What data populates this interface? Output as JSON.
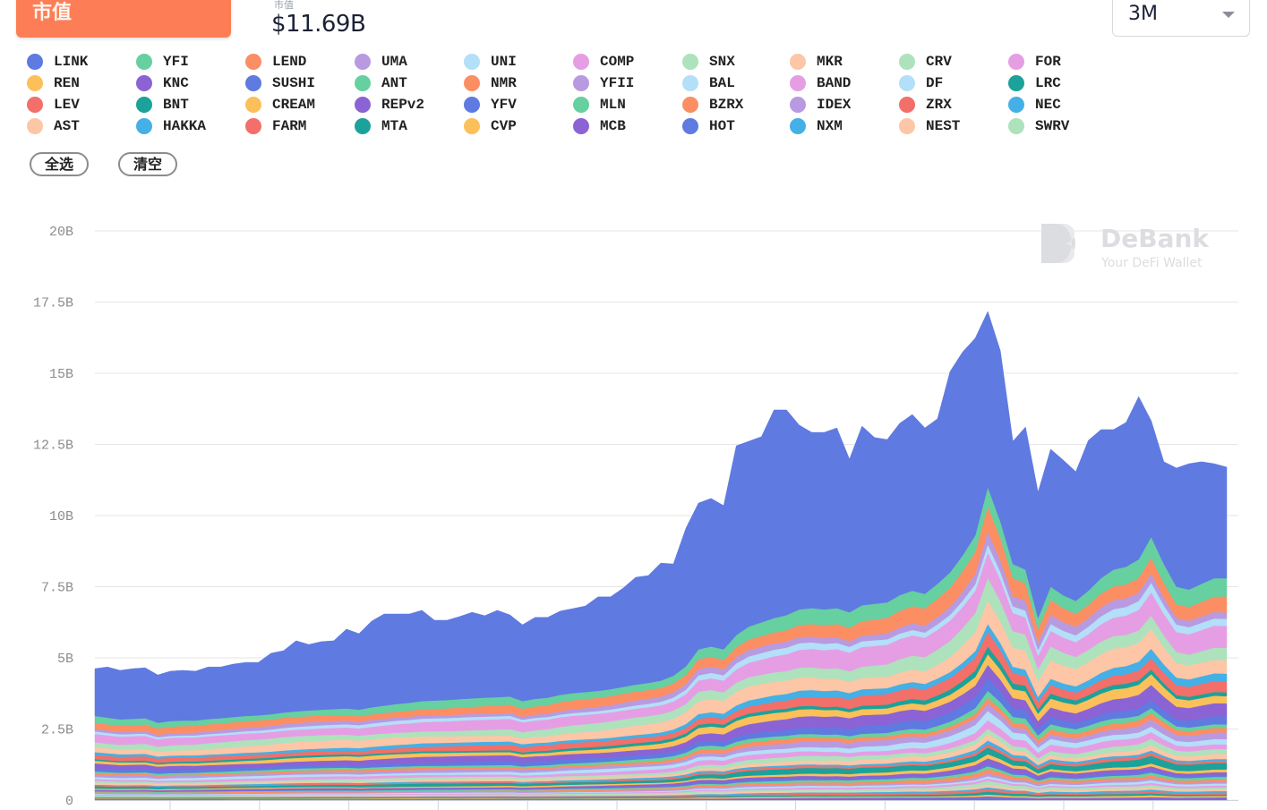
{
  "header": {
    "tab_active_label": "市值",
    "market_value_caption": "市值",
    "market_value": "$11.69B",
    "range_select": {
      "value": "3M"
    }
  },
  "legend": {
    "items": [
      {
        "label": "LINK",
        "color": "#5f7ae0"
      },
      {
        "label": "REN",
        "color": "#fbc05a"
      },
      {
        "label": "LEV",
        "color": "#f26f6a"
      },
      {
        "label": "AST",
        "color": "#fdc6a6"
      },
      {
        "label": "YFI",
        "color": "#66d0a0"
      },
      {
        "label": "KNC",
        "color": "#8b63d4"
      },
      {
        "label": "BNT",
        "color": "#1ba29a"
      },
      {
        "label": "HAKKA",
        "color": "#44b0e6"
      },
      {
        "label": "LEND",
        "color": "#fc8e64"
      },
      {
        "label": "SUSHI",
        "color": "#5f7ae0"
      },
      {
        "label": "CREAM",
        "color": "#fbc05a"
      },
      {
        "label": "FARM",
        "color": "#f26f6a"
      },
      {
        "label": "UMA",
        "color": "#b89ae0"
      },
      {
        "label": "ANT",
        "color": "#66d0a0"
      },
      {
        "label": "REPv2",
        "color": "#8b63d4"
      },
      {
        "label": "MTA",
        "color": "#1ba29a"
      },
      {
        "label": "UNI",
        "color": "#b3dff8"
      },
      {
        "label": "NMR",
        "color": "#fc8e64"
      },
      {
        "label": "YFV",
        "color": "#5f7ae0"
      },
      {
        "label": "CVP",
        "color": "#fbc05a"
      },
      {
        "label": "COMP",
        "color": "#e59ee4"
      },
      {
        "label": "YFII",
        "color": "#b89ae0"
      },
      {
        "label": "MLN",
        "color": "#66d0a0"
      },
      {
        "label": "MCB",
        "color": "#8b63d4"
      },
      {
        "label": "SNX",
        "color": "#ade2bc"
      },
      {
        "label": "BAL",
        "color": "#b3dff8"
      },
      {
        "label": "BZRX",
        "color": "#fc8e64"
      },
      {
        "label": "HOT",
        "color": "#5f7ae0"
      },
      {
        "label": "MKR",
        "color": "#fdc6a6"
      },
      {
        "label": "BAND",
        "color": "#e59ee4"
      },
      {
        "label": "IDEX",
        "color": "#b89ae0"
      },
      {
        "label": "NXM",
        "color": "#44b0e6"
      },
      {
        "label": "CRV",
        "color": "#ade2bc"
      },
      {
        "label": "DF",
        "color": "#b3dff8"
      },
      {
        "label": "ZRX",
        "color": "#f26f6a"
      },
      {
        "label": "NEST",
        "color": "#fdc6a6"
      },
      {
        "label": "FOR",
        "color": "#e59ee4"
      },
      {
        "label": "LRC",
        "color": "#1ba29a"
      },
      {
        "label": "NEC",
        "color": "#44b0e6"
      },
      {
        "label": "SWRV",
        "color": "#ade2bc"
      }
    ],
    "select_all_label": "全选",
    "clear_label": "清空"
  },
  "watermark": {
    "title": "DeBank",
    "subtitle": "Your DeFi Wallet"
  },
  "chart_data": {
    "type": "area",
    "stacked": true,
    "title": "",
    "xlabel": "",
    "ylabel": "",
    "ylim": [
      0,
      20
    ],
    "y_unit": "B",
    "y_ticks": [
      "0",
      "2.5B",
      "5B",
      "7.5B",
      "10B",
      "12.5B",
      "15B",
      "17.5B",
      "20B"
    ],
    "y_tick_values": [
      0,
      2.5,
      5,
      7.5,
      10,
      12.5,
      15,
      17.5,
      20
    ],
    "x_tick_count": 12,
    "x_tick_labels": [],
    "grid": true,
    "legend_position": "top",
    "total": [
      4.62,
      4.68,
      4.56,
      4.62,
      4.65,
      4.4,
      4.53,
      4.56,
      4.53,
      4.68,
      4.68,
      4.78,
      4.84,
      4.84,
      5.16,
      5.25,
      5.6,
      5.47,
      5.57,
      5.6,
      6.01,
      5.85,
      6.29,
      6.54,
      6.54,
      6.54,
      6.67,
      6.32,
      6.32,
      6.45,
      6.6,
      6.48,
      6.67,
      6.51,
      6.16,
      6.42,
      6.42,
      6.64,
      6.73,
      6.82,
      7.14,
      7.14,
      7.45,
      7.83,
      7.89,
      8.33,
      8.3,
      9.56,
      10.44,
      10.6,
      10.35,
      12.45,
      12.61,
      12.77,
      13.71,
      13.71,
      13.18,
      12.92,
      12.92,
      13.08,
      11.98,
      13.14,
      12.74,
      12.67,
      13.24,
      13.55,
      13.08,
      13.4,
      15.06,
      15.75,
      16.23,
      17.17,
      15.79,
      12.61,
      13.11,
      10.82,
      12.33,
      11.95,
      11.54,
      12.64,
      13.02,
      13.02,
      13.27,
      14.18,
      13.33,
      11.89,
      11.67,
      11.82,
      11.89,
      11.82,
      11.7
    ],
    "others_total": [
      2.96,
      2.9,
      2.84,
      2.86,
      2.88,
      2.72,
      2.78,
      2.8,
      2.8,
      2.85,
      2.88,
      2.92,
      2.96,
      2.98,
      3.02,
      3.08,
      3.12,
      3.15,
      3.18,
      3.2,
      3.22,
      3.18,
      3.26,
      3.32,
      3.38,
      3.42,
      3.48,
      3.5,
      3.52,
      3.55,
      3.58,
      3.6,
      3.62,
      3.64,
      3.48,
      3.56,
      3.6,
      3.7,
      3.76,
      3.8,
      3.84,
      3.9,
      3.98,
      4.06,
      4.12,
      4.2,
      4.37,
      4.7,
      5.3,
      5.4,
      5.3,
      5.8,
      6.1,
      6.25,
      6.4,
      6.5,
      6.7,
      6.75,
      6.7,
      6.75,
      6.6,
      6.85,
      6.9,
      6.95,
      7.2,
      7.36,
      7.25,
      7.6,
      8.0,
      8.6,
      9.3,
      11.0,
      9.8,
      8.3,
      8.1,
      6.4,
      7.5,
      7.2,
      7.0,
      7.36,
      7.8,
      8.1,
      8.2,
      8.46,
      9.25,
      8.3,
      7.5,
      7.4,
      7.6,
      7.8,
      7.8
    ],
    "series_shares": [
      {
        "name": "LINK",
        "role": "remainder"
      },
      {
        "name": "YFI",
        "share": 0.07
      },
      {
        "name": "LEND",
        "share": 0.07
      },
      {
        "name": "UMA",
        "share": 0.035
      },
      {
        "name": "UNI",
        "share": 0.03
      },
      {
        "name": "COMP",
        "share": 0.085
      },
      {
        "name": "SNX",
        "share": 0.06
      },
      {
        "name": "MKR",
        "share": 0.07
      },
      {
        "name": "NXM",
        "share": 0.03
      },
      {
        "name": "ZRX",
        "share": 0.045
      },
      {
        "name": "LRC",
        "share": 0.02
      },
      {
        "name": "REN",
        "share": 0.035
      },
      {
        "name": "KNC",
        "share": 0.05
      },
      {
        "name": "SUSHI",
        "share": 0.035
      },
      {
        "name": "ANT",
        "share": 0.02
      },
      {
        "name": "NMR",
        "share": 0.02
      },
      {
        "name": "YFII",
        "share": 0.025
      },
      {
        "name": "BAL",
        "share": 0.025
      },
      {
        "name": "BAND",
        "share": 0.025
      },
      {
        "name": "CRV",
        "share": 0.02
      },
      {
        "name": "NEST",
        "share": 0.02
      },
      {
        "name": "NEC",
        "share": 0.01
      },
      {
        "name": "LEV",
        "share": 0.01
      },
      {
        "name": "BNT",
        "share": 0.025
      },
      {
        "name": "CREAM",
        "share": 0.012
      },
      {
        "name": "REPv2",
        "share": 0.015
      },
      {
        "name": "YFV",
        "share": 0.008
      },
      {
        "name": "MLN",
        "share": 0.01
      },
      {
        "name": "BZRX",
        "share": 0.012
      },
      {
        "name": "IDEX",
        "share": 0.008
      },
      {
        "name": "DF",
        "share": 0.008
      },
      {
        "name": "FOR",
        "share": 0.008
      },
      {
        "name": "SWRV",
        "share": 0.01
      },
      {
        "name": "AST",
        "share": 0.008
      },
      {
        "name": "HAKKA",
        "share": 0.006
      },
      {
        "name": "FARM",
        "share": 0.008
      },
      {
        "name": "MTA",
        "share": 0.008
      },
      {
        "name": "CVP",
        "share": 0.006
      },
      {
        "name": "MCB",
        "share": 0.006
      },
      {
        "name": "HOT",
        "share": 0.006
      }
    ]
  }
}
